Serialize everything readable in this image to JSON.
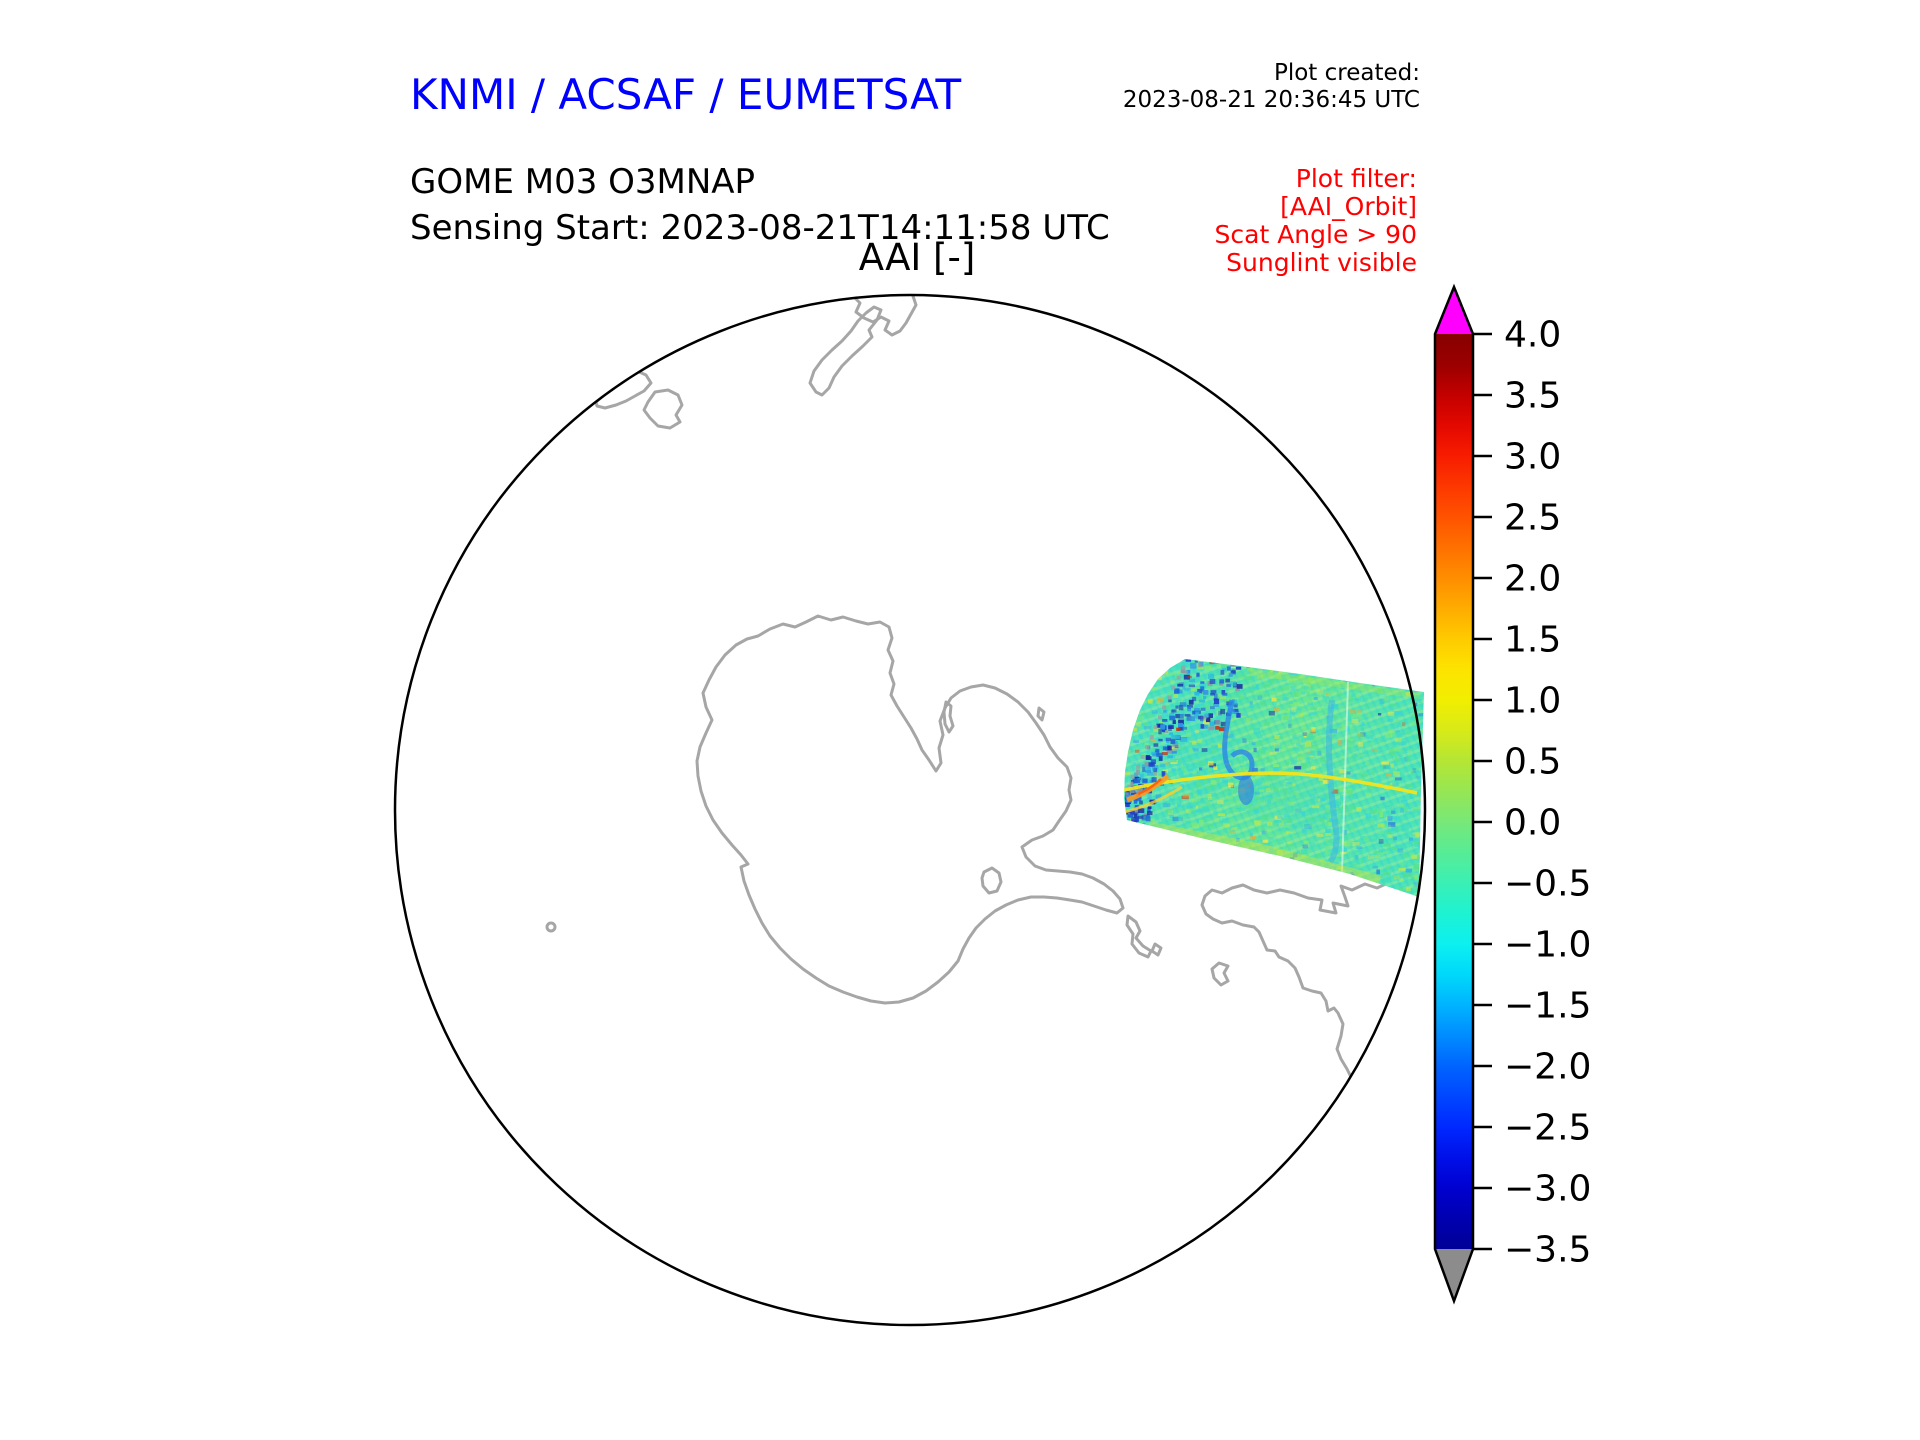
{
  "header": {
    "title": "KNMI / ACSAF / EUMETSAT",
    "title_color": "#0000ff",
    "product_line1": "GOME M03 O3MNAP",
    "product_line2": "Sensing Start: 2023-08-21T14:11:58 UTC",
    "plot_created_label": "Plot created:",
    "plot_created_value": "2023-08-21 20:36:45 UTC"
  },
  "plot_filter": {
    "color": "#ff0000",
    "lines": [
      "Plot filter:",
      "[AAI_Orbit]",
      "Scat Angle > 90",
      "Sunglint visible"
    ]
  },
  "map": {
    "title": "AAI [-]",
    "projection": "south polar stereographic",
    "boundary_color": "#000000",
    "coastline_color": "#a6a6a6",
    "background": "#ffffff"
  },
  "colorbar": {
    "tick_labels": [
      "4.0",
      "3.5",
      "3.0",
      "2.5",
      "2.0",
      "1.5",
      "1.0",
      "0.5",
      "0.0",
      "−0.5",
      "−1.0",
      "−1.5",
      "−2.0",
      "−2.5",
      "−3.0",
      "−3.5"
    ],
    "over_arrow_color": "#ff00ff",
    "under_arrow_color": "#8c8c8c",
    "outline_color": "#000000",
    "gradient": [
      [
        "0.000",
        "#860000"
      ],
      [
        "0.035",
        "#9c0000"
      ],
      [
        "0.067",
        "#c30000"
      ],
      [
        "0.100",
        "#e30800"
      ],
      [
        "0.133",
        "#f71c00"
      ],
      [
        "0.167",
        "#fd3800"
      ],
      [
        "0.200",
        "#ff5200"
      ],
      [
        "0.233",
        "#ff7000"
      ],
      [
        "0.267",
        "#ff8e00"
      ],
      [
        "0.300",
        "#ffac00"
      ],
      [
        "0.333",
        "#ffca00"
      ],
      [
        "0.367",
        "#fce400"
      ],
      [
        "0.400",
        "#f2ee00"
      ],
      [
        "0.433",
        "#d8ea18"
      ],
      [
        "0.467",
        "#b4e634"
      ],
      [
        "0.500",
        "#96e654"
      ],
      [
        "0.533",
        "#78e878"
      ],
      [
        "0.567",
        "#57ec96"
      ],
      [
        "0.600",
        "#3af0b4"
      ],
      [
        "0.633",
        "#1ef2d2"
      ],
      [
        "0.667",
        "#0cf0f0"
      ],
      [
        "0.700",
        "#00d8fa"
      ],
      [
        "0.733",
        "#00b4ff"
      ],
      [
        "0.767",
        "#008cff"
      ],
      [
        "0.800",
        "#0064ff"
      ],
      [
        "0.833",
        "#0046ff"
      ],
      [
        "0.867",
        "#0028ff"
      ],
      [
        "0.900",
        "#0010e8"
      ],
      [
        "0.933",
        "#0000d0"
      ],
      [
        "0.967",
        "#0000b0"
      ],
      [
        "1.000",
        "#000096"
      ]
    ]
  },
  "swath": {
    "base_gradient": [
      [
        "0.00",
        "#63e5a8"
      ],
      [
        "0.20",
        "#49e0c0"
      ],
      [
        "0.42",
        "#55e2a8"
      ],
      [
        "0.62",
        "#66e698"
      ],
      [
        "0.82",
        "#55e2ae"
      ],
      [
        "1.00",
        "#4de2b8"
      ]
    ],
    "noise_palette": [
      {
        "c": "#55e08a",
        "w": 22
      },
      {
        "c": "#3fdcc0",
        "w": 20
      },
      {
        "c": "#6fe88a",
        "w": 16
      },
      {
        "c": "#35d4da",
        "w": 12
      },
      {
        "c": "#8aec6e",
        "w": 8
      },
      {
        "c": "#ffe73c",
        "w": 6
      },
      {
        "c": "#cfe83a",
        "w": 6
      },
      {
        "c": "#35a8e8",
        "w": 4
      },
      {
        "c": "#2b6ee0",
        "w": 3
      },
      {
        "c": "#ffa526",
        "w": 1.5
      },
      {
        "c": "#1a2fa0",
        "w": 1
      },
      {
        "c": "#e04010",
        "w": 0.5
      }
    ],
    "corner_palette": [
      {
        "c": "#16279e",
        "w": 5
      },
      {
        "c": "#2040c8",
        "w": 5
      },
      {
        "c": "#1c64d8",
        "w": 4
      },
      {
        "c": "#2f93e8",
        "w": 3
      },
      {
        "c": "#28b8e0",
        "w": 3
      },
      {
        "c": "#8c98a8",
        "w": 2
      },
      {
        "c": "#c83010",
        "w": 0.6
      }
    ]
  },
  "chart_data": {
    "type": "heatmap",
    "title": "AAI [-]",
    "colorbar": {
      "label": "AAI [-]",
      "min": -3.5,
      "max": 4.0,
      "tick_step": 0.5,
      "tick_labels": [
        "4.0",
        "3.5",
        "3.0",
        "2.5",
        "2.0",
        "1.5",
        "1.0",
        "0.5",
        "0.0",
        "−0.5",
        "−1.0",
        "−1.5",
        "−2.0",
        "−2.5",
        "−3.0",
        "−3.5"
      ],
      "over_range": "magenta arrow (> 4.0)",
      "under_range": "gray arrow (< −3.5)"
    },
    "content_summary": "Single GOME-2 (Metop-B, M03) orbit swath of Absorbing Aerosol Index plotted on a south-polar stereographic map with Antarctica, New Zealand, Tasmania and southern South America coastlines; swath lies over the ocean sector east of the Antarctic Peninsula, values mostly between −1 and +1 (green/cyan) with dark-blue speckle (< −2) at the swath's upper-left corner, a thin yellow streak (~+1) crossing the swath and small orange arcs (~+1.5) near its left edge."
  }
}
